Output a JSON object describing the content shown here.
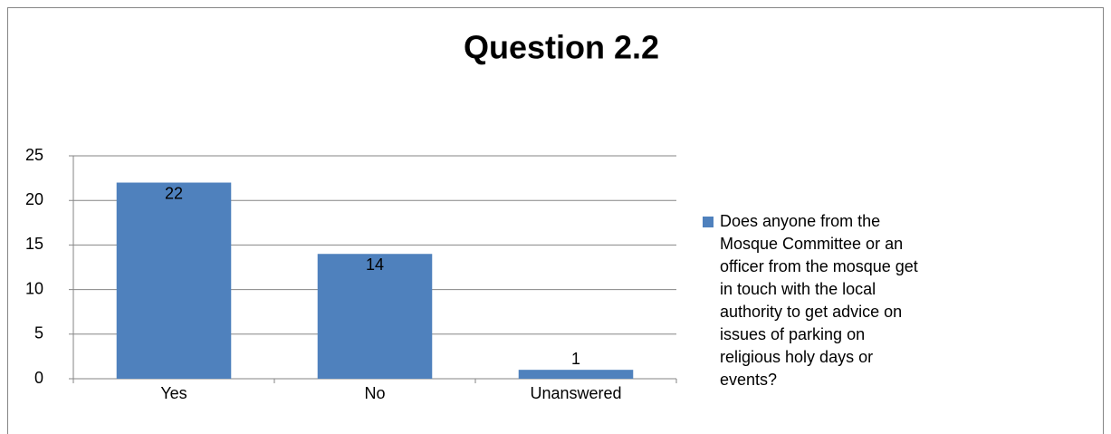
{
  "chart_data": {
    "type": "bar",
    "title": "Question 2.2",
    "categories": [
      "Yes",
      "No",
      "Unanswered"
    ],
    "series": [
      {
        "name": "Does anyone from the Mosque Committee or an officer from the mosque get in touch with the local authority to get advice on issues of parking on religious holy days or events?",
        "color": "#4f81bd",
        "values": [
          22,
          14,
          1
        ]
      }
    ],
    "ylim": [
      0,
      25
    ],
    "yticks": [
      0,
      5,
      10,
      15,
      20,
      25
    ],
    "grid": true,
    "legend": "right"
  }
}
